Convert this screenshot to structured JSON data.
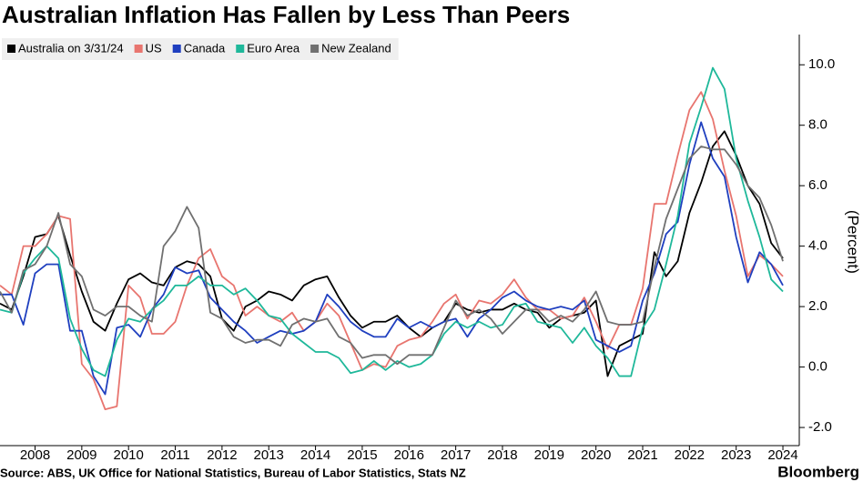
{
  "chart_data": {
    "type": "line",
    "title": "Australian Inflation Has Fallen by Less Than Peers",
    "y_label": "(Percent)",
    "source": "Source: ABS, UK Office for National Statistics, Bureau of Labor Statistics, Stats NZ",
    "logo": "Bloomberg",
    "x": [
      2007.25,
      2007.5,
      2007.75,
      2008,
      2008.25,
      2008.5,
      2008.75,
      2009,
      2009.25,
      2009.5,
      2009.75,
      2010,
      2010.25,
      2010.5,
      2010.75,
      2011,
      2011.25,
      2011.5,
      2011.75,
      2012,
      2012.25,
      2012.5,
      2012.75,
      2013,
      2013.25,
      2013.5,
      2013.75,
      2014,
      2014.25,
      2014.5,
      2014.75,
      2015,
      2015.25,
      2015.5,
      2015.75,
      2016,
      2016.25,
      2016.5,
      2016.75,
      2017,
      2017.25,
      2017.5,
      2017.75,
      2018,
      2018.25,
      2018.5,
      2018.75,
      2019,
      2019.25,
      2019.5,
      2019.75,
      2020,
      2020.25,
      2020.5,
      2020.75,
      2021,
      2021.25,
      2021.5,
      2021.75,
      2022,
      2022.25,
      2022.5,
      2022.75,
      2023,
      2023.25,
      2023.5,
      2023.75,
      2024
    ],
    "series": [
      {
        "name": "Australia on 3/31/24",
        "color": "#000000",
        "values": [
          2.1,
          1.9,
          3.0,
          4.3,
          4.4,
          5.0,
          3.7,
          2.5,
          1.5,
          1.2,
          2.1,
          2.9,
          3.1,
          2.8,
          2.7,
          3.3,
          3.5,
          3.4,
          3.0,
          1.6,
          1.2,
          2.0,
          2.2,
          2.5,
          2.4,
          2.2,
          2.7,
          2.9,
          3.0,
          2.3,
          1.7,
          1.3,
          1.5,
          1.5,
          1.7,
          1.3,
          1.0,
          1.3,
          1.5,
          2.1,
          1.9,
          1.8,
          1.9,
          1.9,
          2.1,
          1.9,
          1.8,
          1.3,
          1.6,
          1.7,
          1.8,
          2.2,
          -0.3,
          0.7,
          0.9,
          1.1,
          3.8,
          3.0,
          3.5,
          5.1,
          6.1,
          7.3,
          7.8,
          7.0,
          6.0,
          5.4,
          4.1,
          3.6
        ]
      },
      {
        "name": "US",
        "color": "#e8756f",
        "values": [
          2.7,
          2.4,
          4.0,
          4.0,
          4.4,
          5.0,
          4.9,
          0.1,
          -0.4,
          -1.4,
          -1.3,
          2.7,
          2.3,
          1.1,
          1.1,
          1.5,
          2.7,
          3.6,
          3.9,
          3.0,
          2.7,
          1.7,
          2.0,
          1.7,
          1.5,
          1.8,
          1.2,
          1.5,
          2.1,
          1.7,
          0.8,
          -0.1,
          0.1,
          0.0,
          0.7,
          0.9,
          1.0,
          1.5,
          2.1,
          2.4,
          1.6,
          2.2,
          2.1,
          2.4,
          2.9,
          2.3,
          1.9,
          1.9,
          1.6,
          1.7,
          2.3,
          1.5,
          0.6,
          1.4,
          1.4,
          2.6,
          5.4,
          5.4,
          7.0,
          8.5,
          9.1,
          8.2,
          6.5,
          5.0,
          3.0,
          3.7,
          3.4,
          3.0
        ]
      },
      {
        "name": "Canada",
        "color": "#1f3fbf",
        "values": [
          2.4,
          2.4,
          1.4,
          3.1,
          3.4,
          3.4,
          1.2,
          1.2,
          -0.3,
          -0.9,
          1.3,
          1.4,
          1.0,
          1.9,
          2.4,
          3.3,
          3.1,
          3.2,
          2.3,
          1.9,
          1.5,
          1.2,
          0.8,
          1.0,
          1.2,
          1.1,
          1.2,
          1.5,
          2.4,
          2.0,
          1.5,
          1.2,
          1.0,
          1.0,
          1.6,
          1.3,
          1.5,
          1.3,
          1.5,
          1.6,
          1.0,
          1.6,
          1.9,
          2.3,
          2.5,
          2.2,
          2.0,
          1.9,
          2.0,
          1.9,
          2.2,
          0.9,
          0.7,
          0.5,
          0.7,
          2.2,
          3.1,
          4.4,
          4.8,
          6.7,
          8.1,
          6.9,
          6.3,
          4.3,
          2.8,
          3.8,
          3.4,
          2.7
        ]
      },
      {
        "name": "Euro Area",
        "color": "#1fb89a",
        "values": [
          1.9,
          1.8,
          3.1,
          3.6,
          4.0,
          3.6,
          1.6,
          0.6,
          -0.1,
          -0.3,
          0.9,
          1.6,
          1.5,
          1.9,
          2.2,
          2.7,
          2.7,
          3.0,
          2.7,
          2.7,
          2.4,
          2.6,
          2.2,
          1.7,
          1.6,
          1.1,
          0.8,
          0.5,
          0.5,
          0.3,
          -0.2,
          -0.1,
          0.2,
          -0.1,
          0.2,
          0.0,
          0.1,
          0.4,
          1.1,
          1.5,
          1.3,
          1.5,
          1.3,
          1.4,
          2.0,
          2.1,
          1.5,
          1.4,
          1.3,
          0.8,
          1.3,
          0.7,
          0.3,
          -0.3,
          -0.3,
          1.3,
          1.9,
          3.4,
          5.0,
          7.4,
          8.6,
          9.9,
          9.2,
          6.9,
          5.5,
          4.3,
          2.9,
          2.5
        ]
      },
      {
        "name": "New Zealand",
        "color": "#707070",
        "values": [
          2.5,
          1.8,
          3.2,
          3.4,
          4.0,
          5.1,
          3.4,
          3.0,
          1.9,
          1.7,
          2.0,
          2.0,
          1.7,
          1.5,
          4.0,
          4.5,
          5.3,
          4.6,
          1.8,
          1.6,
          1.0,
          0.8,
          0.9,
          0.9,
          0.7,
          1.4,
          1.6,
          1.5,
          1.6,
          1.0,
          0.8,
          0.3,
          0.4,
          0.4,
          0.1,
          0.4,
          0.4,
          0.4,
          1.3,
          2.2,
          1.7,
          1.9,
          1.6,
          1.1,
          1.5,
          1.9,
          1.9,
          1.5,
          1.7,
          1.5,
          1.9,
          2.5,
          1.5,
          1.4,
          1.4,
          1.5,
          3.3,
          4.9,
          5.9,
          6.9,
          7.3,
          7.2,
          7.2,
          6.7,
          6.0,
          5.6,
          4.7,
          3.5
        ]
      }
    ],
    "xlim": [
      2007.25,
      2024.35
    ],
    "xticks": [
      2008,
      2009,
      2010,
      2011,
      2012,
      2013,
      2014,
      2015,
      2016,
      2017,
      2018,
      2019,
      2020,
      2021,
      2022,
      2023,
      2024
    ],
    "ylim": [
      -2.6,
      11
    ],
    "yticks": [
      {
        "value": -2,
        "label": "-2.0"
      },
      {
        "value": 0,
        "label": "0.0"
      },
      {
        "value": 2,
        "label": "2.0"
      },
      {
        "value": 4,
        "label": "4.0"
      },
      {
        "value": 6,
        "label": "6.0"
      },
      {
        "value": 8,
        "label": "8.0"
      },
      {
        "value": 10,
        "label": "10.0"
      }
    ],
    "grid": false,
    "legend": "top-left"
  }
}
